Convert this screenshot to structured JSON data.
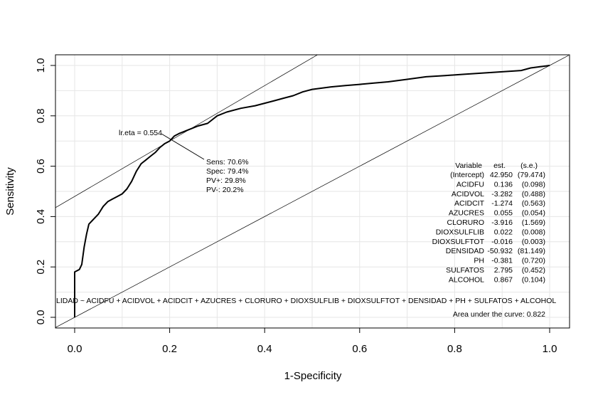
{
  "chart_data": {
    "type": "line",
    "xlabel": "1-Specificity",
    "ylabel": "Sensitivity",
    "xlim": [
      -0.04,
      1.04
    ],
    "ylim": [
      -0.04,
      1.04
    ],
    "x_ticks": [
      0.0,
      0.2,
      0.4,
      0.6,
      0.8,
      1.0
    ],
    "y_ticks": [
      0.0,
      0.2,
      0.4,
      0.6,
      0.8,
      1.0
    ],
    "x_tick_labels": [
      "0.0",
      "0.2",
      "0.4",
      "0.6",
      "0.8",
      "1.0"
    ],
    "y_tick_labels": [
      "0.0",
      "0.2",
      "0.4",
      "0.6",
      "0.8",
      "1.0"
    ],
    "grid": true,
    "series": [
      {
        "values": [
          [
            0.0,
            0.0
          ],
          [
            0.0,
            0.18
          ],
          [
            0.01,
            0.19
          ],
          [
            0.015,
            0.21
          ],
          [
            0.02,
            0.28
          ],
          [
            0.025,
            0.33
          ],
          [
            0.03,
            0.37
          ],
          [
            0.04,
            0.39
          ],
          [
            0.05,
            0.41
          ],
          [
            0.06,
            0.44
          ],
          [
            0.07,
            0.46
          ],
          [
            0.08,
            0.47
          ],
          [
            0.09,
            0.48
          ],
          [
            0.1,
            0.49
          ],
          [
            0.11,
            0.51
          ],
          [
            0.12,
            0.54
          ],
          [
            0.13,
            0.58
          ],
          [
            0.14,
            0.61
          ],
          [
            0.15,
            0.625
          ],
          [
            0.16,
            0.64
          ],
          [
            0.17,
            0.655
          ],
          [
            0.18,
            0.675
          ],
          [
            0.19,
            0.69
          ],
          [
            0.2,
            0.7
          ],
          [
            0.21,
            0.72
          ],
          [
            0.22,
            0.73
          ],
          [
            0.24,
            0.745
          ],
          [
            0.26,
            0.76
          ],
          [
            0.28,
            0.77
          ],
          [
            0.3,
            0.8
          ],
          [
            0.32,
            0.815
          ],
          [
            0.35,
            0.83
          ],
          [
            0.38,
            0.84
          ],
          [
            0.4,
            0.85
          ],
          [
            0.42,
            0.86
          ],
          [
            0.44,
            0.87
          ],
          [
            0.46,
            0.88
          ],
          [
            0.48,
            0.895
          ],
          [
            0.5,
            0.905
          ],
          [
            0.52,
            0.91
          ],
          [
            0.54,
            0.915
          ],
          [
            0.57,
            0.92
          ],
          [
            0.6,
            0.925
          ],
          [
            0.63,
            0.93
          ],
          [
            0.66,
            0.935
          ],
          [
            0.7,
            0.945
          ],
          [
            0.74,
            0.955
          ],
          [
            0.78,
            0.96
          ],
          [
            0.82,
            0.965
          ],
          [
            0.86,
            0.97
          ],
          [
            0.9,
            0.975
          ],
          [
            0.94,
            0.98
          ],
          [
            0.96,
            0.99
          ],
          [
            0.98,
            0.995
          ],
          [
            1.0,
            1.0
          ]
        ]
      }
    ],
    "reference_lines": [
      {
        "intercept": 0.0,
        "slope": 1.0
      },
      {
        "intercept": 0.48,
        "slope": 1.1
      }
    ],
    "annotations": {
      "cutoff_label": "lr.eta = 0.554",
      "cutoff_point": [
        0.206,
        0.706
      ],
      "metrics": [
        "Sens: 70.6%",
        "Spec: 79.4%",
        "PV+: 29.8%",
        "PV-: 20.2%"
      ],
      "table_header": [
        "Variable",
        "est.",
        "(s.e.)"
      ],
      "table_rows": [
        [
          "(Intercept)",
          "42.950",
          "(79.474)"
        ],
        [
          "ACIDFU",
          "0.136",
          "(0.098)"
        ],
        [
          "ACIDVOL",
          "-3.282",
          "(0.488)"
        ],
        [
          "ACIDCIT",
          "-1.274",
          "(0.563)"
        ],
        [
          "AZUCRES",
          "0.055",
          "(0.054)"
        ],
        [
          "CLORURO",
          "-3.916",
          "(1.569)"
        ],
        [
          "DIOXSULFLIB",
          "0.022",
          "(0.008)"
        ],
        [
          "DIOXSULFTOT",
          "-0.016",
          "(0.003)"
        ],
        [
          "DENSIDAD",
          "-50.932",
          "(81.149)"
        ],
        [
          "PH",
          "-0.381",
          "(0.720)"
        ],
        [
          "SULFATOS",
          "2.795",
          "(0.452)"
        ],
        [
          "ALCOHOL",
          "0.867",
          "(0.104)"
        ]
      ],
      "formula": "LIDAD ~ ACIDFU + ACIDVOL + ACIDCIT + AZUCRES + CLORURO + DIOXSULFLIB + DIOXSULFTOT + DENSIDAD + PH + SULFATOS + ALCOHOL",
      "auc": "Area under the curve: 0.822"
    }
  }
}
